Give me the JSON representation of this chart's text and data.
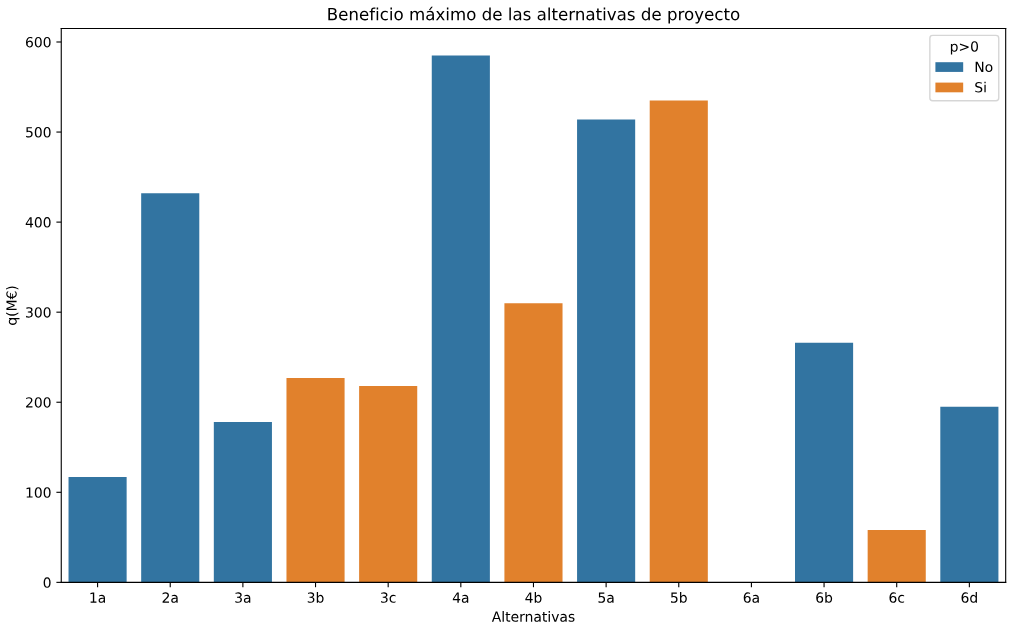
{
  "chart_data": {
    "type": "bar",
    "title": "Beneficio máximo de las alternativas de proyecto",
    "xlabel": "Alternativas",
    "ylabel": "q(M€)",
    "legend_title": "p>0",
    "categories": [
      "1a",
      "2a",
      "3a",
      "3b",
      "3c",
      "4a",
      "4b",
      "5a",
      "5b",
      "6a",
      "6b",
      "6c",
      "6d"
    ],
    "series": [
      {
        "name": "No",
        "color": "#3274a1",
        "values": [
          117,
          432,
          178,
          null,
          null,
          585,
          null,
          514,
          null,
          0,
          266,
          null,
          195
        ]
      },
      {
        "name": "Si",
        "color": "#e1812c",
        "values": [
          null,
          null,
          null,
          227,
          218,
          null,
          310,
          null,
          535,
          null,
          null,
          58,
          null
        ]
      }
    ],
    "ylim": [
      0,
      615
    ],
    "yticks": [
      0,
      100,
      200,
      300,
      400,
      500,
      600
    ],
    "grid": false,
    "legend": "top right"
  }
}
